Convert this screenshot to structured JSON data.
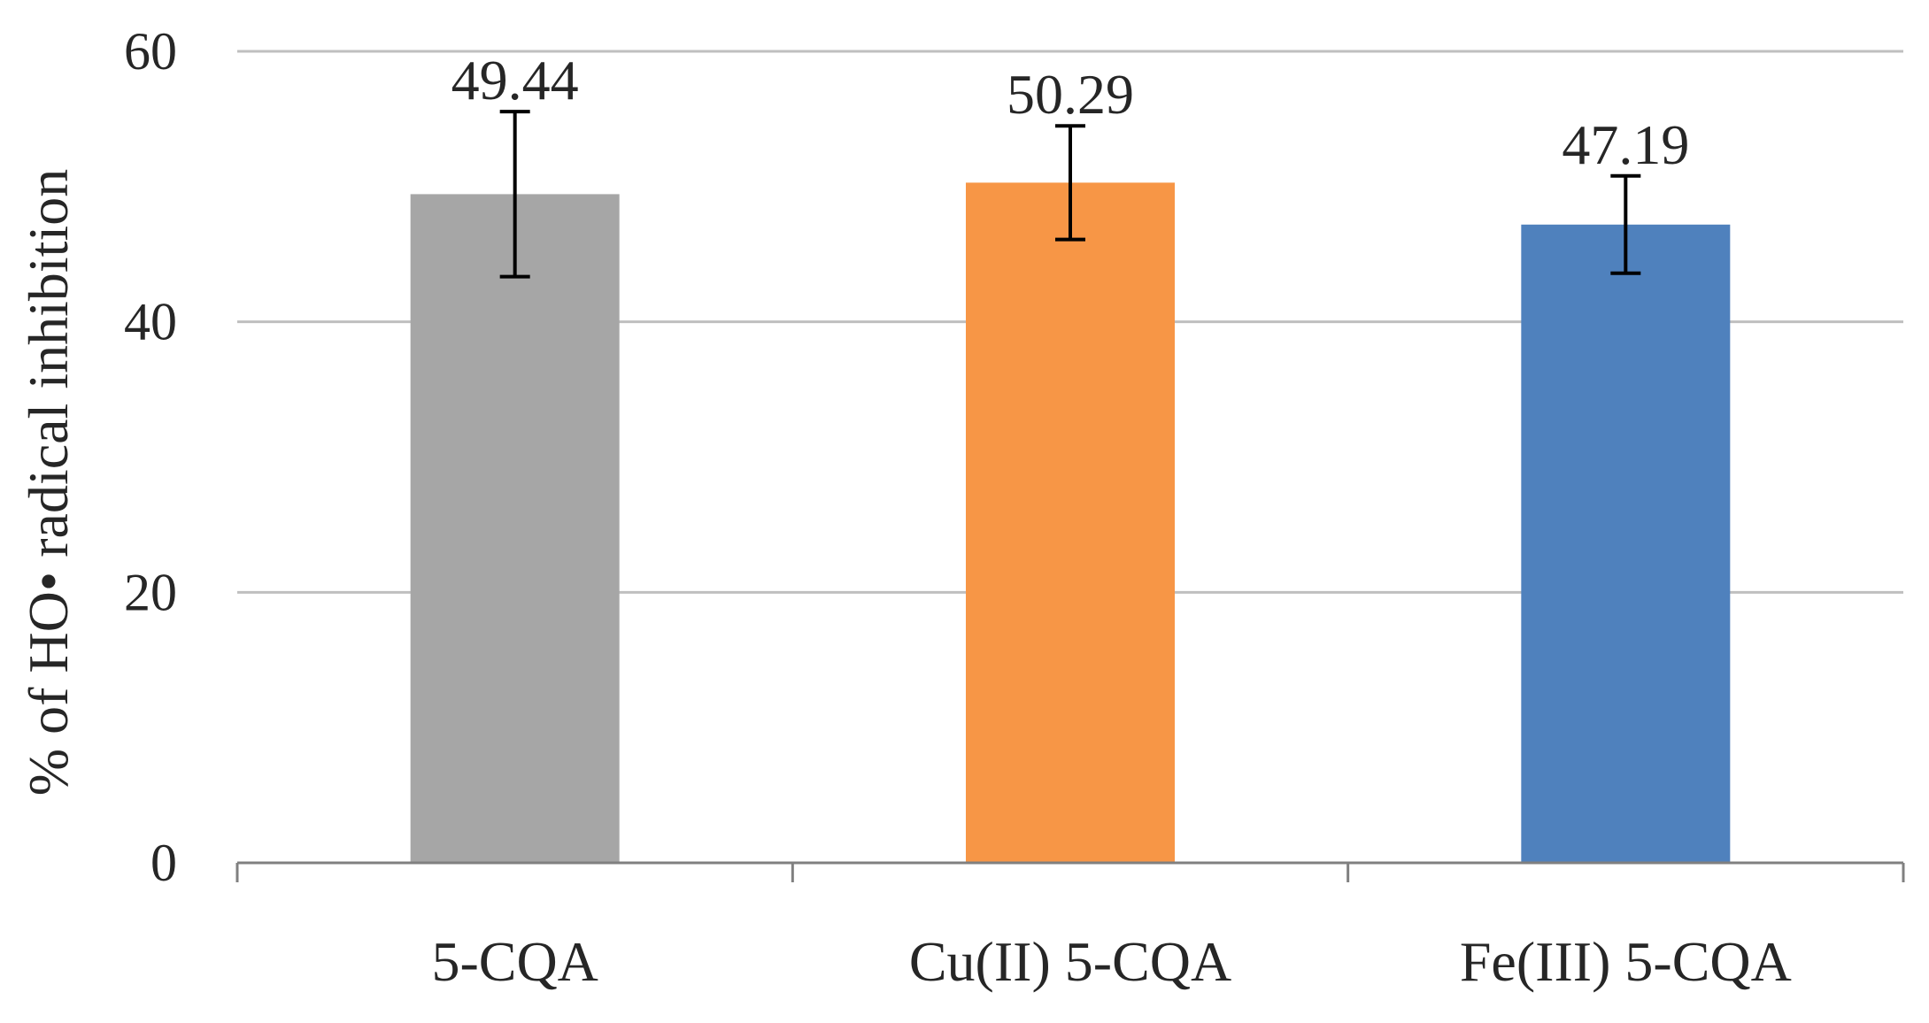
{
  "chart_data": {
    "type": "bar",
    "title": "",
    "xlabel": "",
    "ylabel": "% of HO• radical inhibition",
    "categories": [
      "5-CQA",
      "Cu(II) 5-CQA",
      "Fe(III) 5-CQA"
    ],
    "values": [
      49.44,
      50.29,
      47.19
    ],
    "data_labels": [
      "49.44",
      "50.29",
      "47.19"
    ],
    "error_bars": [
      6.1,
      4.2,
      3.6
    ],
    "colors": [
      "#a6a6a6",
      "#f79646",
      "#4f81bd"
    ],
    "ylim": [
      0,
      60
    ],
    "yticks": [
      0,
      20,
      40,
      60
    ],
    "ytick_labels": [
      "0",
      "20",
      "40",
      "60"
    ],
    "grid": true,
    "gridline_color": "#bfbfbf",
    "axis_color": "#808080",
    "errorbar_color": "#000000",
    "legend": "none"
  }
}
